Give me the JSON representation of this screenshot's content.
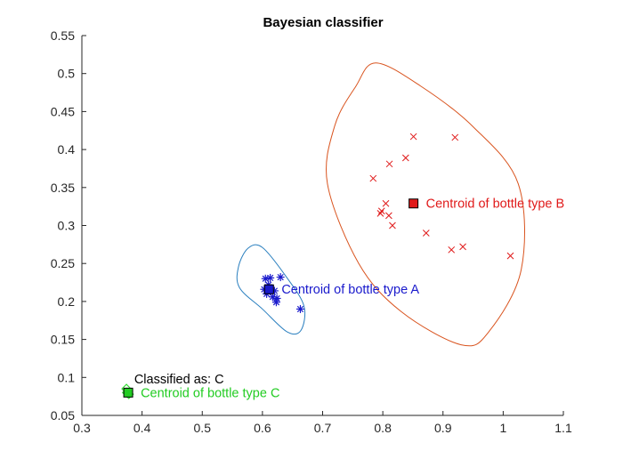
{
  "chart_data": {
    "type": "scatter",
    "title": "Bayesian classifier",
    "xlabel": "",
    "ylabel": "",
    "xlim": [
      0.3,
      1.1
    ],
    "ylim": [
      0.05,
      0.55
    ],
    "xticks": [
      0.3,
      0.4,
      0.5,
      0.6,
      0.7,
      0.8,
      0.9,
      1.0,
      1.1
    ],
    "xtick_labels": [
      "0.3",
      "0.4",
      "0.5",
      "0.6",
      "0.7",
      "0.8",
      "0.9",
      "1",
      "1.1"
    ],
    "yticks": [
      0.05,
      0.1,
      0.15,
      0.2,
      0.25,
      0.3,
      0.35,
      0.4,
      0.45,
      0.5,
      0.55
    ],
    "ytick_labels": [
      "0.05",
      "0.1",
      "0.15",
      "0.2",
      "0.25",
      "0.3",
      "0.35",
      "0.4",
      "0.45",
      "0.5",
      "0.55"
    ],
    "grid": false,
    "series": [
      {
        "marker": "asterisk",
        "color": "#1a1acc",
        "points": [
          [
            0.605,
            0.23
          ],
          [
            0.613,
            0.231
          ],
          [
            0.63,
            0.232
          ],
          [
            0.61,
            0.222
          ],
          [
            0.603,
            0.216
          ],
          [
            0.614,
            0.214
          ],
          [
            0.62,
            0.214
          ],
          [
            0.607,
            0.21
          ],
          [
            0.617,
            0.206
          ],
          [
            0.624,
            0.204
          ],
          [
            0.623,
            0.199
          ],
          [
            0.663,
            0.19
          ]
        ]
      },
      {
        "marker": "x",
        "color": "#e01a1a",
        "points": [
          [
            0.851,
            0.417
          ],
          [
            0.92,
            0.416
          ],
          [
            0.838,
            0.389
          ],
          [
            0.811,
            0.381
          ],
          [
            0.784,
            0.362
          ],
          [
            0.805,
            0.329
          ],
          [
            0.798,
            0.319
          ],
          [
            0.796,
            0.316
          ],
          [
            0.81,
            0.313
          ],
          [
            0.816,
            0.3
          ],
          [
            0.872,
            0.29
          ],
          [
            0.933,
            0.272
          ],
          [
            0.914,
            0.268
          ],
          [
            1.012,
            0.26
          ]
        ]
      },
      {
        "marker": "diamond",
        "color": "#33dd33",
        "points": [
          [
            0.374,
            0.085
          ],
          [
            0.378,
            0.078
          ],
          [
            0.375,
            0.08
          ]
        ]
      }
    ],
    "centroids": [
      {
        "x": 0.611,
        "y": 0.216,
        "color": "#1a1acc",
        "label": "Centroid of bottle type A"
      },
      {
        "x": 0.851,
        "y": 0.329,
        "color": "#e01a1a",
        "label": "Centroid of bottle type B"
      },
      {
        "x": 0.377,
        "y": 0.08,
        "color": "#22cc22",
        "label": "Centroid of bottle type C"
      }
    ],
    "ellipses": [
      {
        "cx": 0.611,
        "cy": 0.216,
        "color": "#2a7fbf",
        "outline": [
          [
            0.56,
            0.245
          ],
          [
            0.576,
            0.27
          ],
          [
            0.6,
            0.271
          ],
          [
            0.64,
            0.232
          ],
          [
            0.669,
            0.194
          ],
          [
            0.664,
            0.162
          ],
          [
            0.641,
            0.16
          ],
          [
            0.6,
            0.19
          ],
          [
            0.562,
            0.218
          ]
        ]
      },
      {
        "cx": 0.851,
        "cy": 0.329,
        "color": "#d9541f",
        "outline": [
          [
            0.708,
            0.355
          ],
          [
            0.72,
            0.431
          ],
          [
            0.755,
            0.483
          ],
          [
            0.788,
            0.514
          ],
          [
            0.862,
            0.484
          ],
          [
            0.95,
            0.43
          ],
          [
            1.025,
            0.355
          ],
          [
            1.03,
            0.242
          ],
          [
            0.976,
            0.16
          ],
          [
            0.93,
            0.143
          ],
          [
            0.83,
            0.187
          ],
          [
            0.76,
            0.25
          ]
        ]
      }
    ],
    "annotations": [
      {
        "text": "Classified as: C",
        "x": 0.387,
        "y": 0.098,
        "color": "#000000"
      }
    ]
  }
}
